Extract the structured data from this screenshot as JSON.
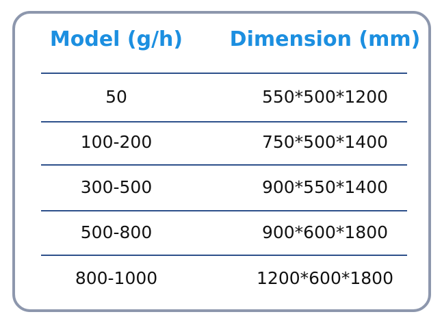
{
  "table": {
    "header": [
      "Model (g/h)",
      "Dimension (mm)"
    ],
    "rows": [
      [
        "50",
        "550*500*1200"
      ],
      [
        "100-200",
        "750*500*1400"
      ],
      [
        "300-500",
        "900*550*1400"
      ],
      [
        "500-800",
        "900*600*1800"
      ],
      [
        "800-1000",
        "1200*600*1800"
      ]
    ]
  }
}
